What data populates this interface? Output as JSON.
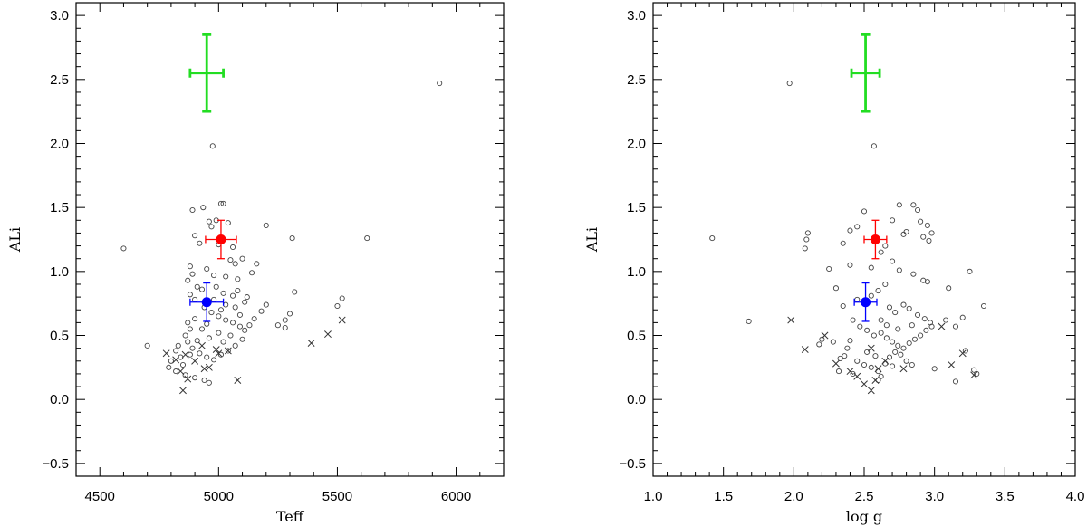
{
  "chart_data": [
    {
      "type": "scatter",
      "xlabel": "Teff",
      "ylabel": "ALi",
      "xlim": [
        4400,
        6200
      ],
      "ylim": [
        -0.6,
        3.1
      ],
      "xticks": [
        4500,
        5000,
        5500,
        6000
      ],
      "xtick_labels": [
        "4500",
        "5000",
        "5500",
        "6000"
      ],
      "yticks": [
        -0.5,
        0.0,
        0.5,
        1.0,
        1.5,
        2.0,
        2.5,
        3.0
      ],
      "ytick_labels": [
        "−0.5",
        "0.0",
        "0.5",
        "1.0",
        "1.5",
        "2.0",
        "2.5",
        "3.0"
      ],
      "grid": false,
      "series": [
        {
          "marker": "circle",
          "color": "#444444",
          "points": [
            [
              4600,
              1.18
            ],
            [
              4700,
              0.42
            ],
            [
              4975,
              1.98
            ],
            [
              5930,
              2.47
            ],
            [
              5200,
              1.36
            ],
            [
              5310,
              1.26
            ],
            [
              5625,
              1.26
            ],
            [
              5520,
              0.79
            ],
            [
              5500,
              0.73
            ],
            [
              5320,
              0.84
            ],
            [
              5300,
              0.67
            ],
            [
              5280,
              0.62
            ],
            [
              5250,
              0.58
            ],
            [
              5280,
              0.56
            ],
            [
              4890,
              1.48
            ],
            [
              4935,
              1.5
            ],
            [
              5010,
              1.53
            ],
            [
              5020,
              1.53
            ],
            [
              4960,
              1.39
            ],
            [
              4970,
              1.35
            ],
            [
              4990,
              1.4
            ],
            [
              5040,
              1.38
            ],
            [
              4900,
              1.28
            ],
            [
              4920,
              1.22
            ],
            [
              5000,
              1.21
            ],
            [
              5060,
              1.19
            ],
            [
              4880,
              1.04
            ],
            [
              4890,
              0.98
            ],
            [
              4870,
              0.93
            ],
            [
              4910,
              0.88
            ],
            [
              4930,
              0.86
            ],
            [
              5050,
              1.09
            ],
            [
              5100,
              1.1
            ],
            [
              5070,
              1.06
            ],
            [
              4950,
              1.02
            ],
            [
              4980,
              0.97
            ],
            [
              5030,
              0.96
            ],
            [
              5080,
              0.94
            ],
            [
              5140,
              0.99
            ],
            [
              5160,
              1.06
            ],
            [
              4880,
              0.82
            ],
            [
              4900,
              0.78
            ],
            [
              4940,
              0.72
            ],
            [
              4970,
              0.68
            ],
            [
              5000,
              0.65
            ],
            [
              5030,
              0.62
            ],
            [
              5060,
              0.6
            ],
            [
              5090,
              0.57
            ],
            [
              5110,
              0.54
            ],
            [
              5130,
              0.58
            ],
            [
              5150,
              0.63
            ],
            [
              5180,
              0.69
            ],
            [
              5200,
              0.74
            ],
            [
              5060,
              0.81
            ],
            [
              5080,
              0.85
            ],
            [
              5120,
              0.8
            ],
            [
              4990,
              0.88
            ],
            [
              4900,
              0.63
            ],
            [
              4880,
              0.55
            ],
            [
              4860,
              0.5
            ],
            [
              4870,
              0.45
            ],
            [
              4890,
              0.4
            ],
            [
              4920,
              0.36
            ],
            [
              4950,
              0.33
            ],
            [
              4980,
              0.31
            ],
            [
              5010,
              0.35
            ],
            [
              5040,
              0.38
            ],
            [
              5070,
              0.42
            ],
            [
              5100,
              0.47
            ],
            [
              5000,
              0.52
            ],
            [
              4960,
              0.48
            ],
            [
              4930,
              0.55
            ],
            [
              4830,
              0.42
            ],
            [
              4820,
              0.38
            ],
            [
              4800,
              0.3
            ],
            [
              4790,
              0.25
            ],
            [
              4820,
              0.22
            ],
            [
              4850,
              0.27
            ],
            [
              4860,
              0.19
            ],
            [
              4900,
              0.17
            ],
            [
              4940,
              0.15
            ],
            [
              4960,
              0.13
            ],
            [
              4870,
              0.6
            ],
            [
              5020,
              0.45
            ],
            [
              5050,
              0.5
            ],
            [
              5010,
              0.7
            ],
            [
              5030,
              0.74
            ],
            [
              5070,
              0.72
            ],
            [
              4950,
              0.59
            ],
            [
              4910,
              0.46
            ],
            [
              4840,
              0.33
            ],
            [
              4880,
              0.35
            ],
            [
              5090,
              0.66
            ],
            [
              5020,
              0.83
            ],
            [
              5110,
              0.76
            ],
            [
              4980,
              0.78
            ]
          ]
        },
        {
          "marker": "cross",
          "color": "#333333",
          "points": [
            [
              4780,
              0.36
            ],
            [
              4820,
              0.31
            ],
            [
              4860,
              0.35
            ],
            [
              4900,
              0.3
            ],
            [
              4840,
              0.22
            ],
            [
              4870,
              0.16
            ],
            [
              4850,
              0.07
            ],
            [
              4940,
              0.24
            ],
            [
              4960,
              0.25
            ],
            [
              5000,
              0.36
            ],
            [
              5040,
              0.38
            ],
            [
              5080,
              0.15
            ],
            [
              5390,
              0.44
            ],
            [
              5460,
              0.51
            ],
            [
              5520,
              0.62
            ],
            [
              4930,
              0.42
            ],
            [
              4990,
              0.39
            ]
          ]
        },
        {
          "marker": "errorbar",
          "color": "#ff0000",
          "points": [
            [
              5010,
              1.25
            ]
          ],
          "xerr": 65,
          "yerr": 0.15
        },
        {
          "marker": "errorbar",
          "color": "#0000ff",
          "points": [
            [
              4950,
              0.76
            ]
          ],
          "xerr": 70,
          "yerr": 0.15
        },
        {
          "marker": "errorbar-only",
          "color": "#22dd22",
          "points": [
            [
              4950,
              2.55
            ]
          ],
          "xerr": 70,
          "yerr": 0.3
        }
      ]
    },
    {
      "type": "scatter",
      "xlabel": "log g",
      "ylabel": "ALi",
      "xlim": [
        1.0,
        4.0
      ],
      "ylim": [
        -0.6,
        3.1
      ],
      "xticks": [
        1.0,
        1.5,
        2.0,
        2.5,
        3.0,
        3.5,
        4.0
      ],
      "xtick_labels": [
        "1.0",
        "1.5",
        "2.0",
        "2.5",
        "3.0",
        "3.5",
        "4.0"
      ],
      "yticks": [
        -0.5,
        0.0,
        0.5,
        1.0,
        1.5,
        2.0,
        2.5,
        3.0
      ],
      "ytick_labels": [
        "−0.5",
        "0.0",
        "0.5",
        "1.0",
        "1.5",
        "2.0",
        "2.5",
        "3.0"
      ],
      "grid": false,
      "series": [
        {
          "marker": "circle",
          "color": "#444444",
          "points": [
            [
              1.42,
              1.26
            ],
            [
              1.68,
              0.61
            ],
            [
              1.97,
              2.47
            ],
            [
              2.57,
              1.98
            ],
            [
              2.1,
              1.3
            ],
            [
              2.09,
              1.25
            ],
            [
              2.08,
              1.18
            ],
            [
              2.25,
              1.02
            ],
            [
              2.35,
              1.22
            ],
            [
              2.4,
              1.32
            ],
            [
              2.45,
              1.35
            ],
            [
              2.5,
              1.47
            ],
            [
              2.7,
              1.4
            ],
            [
              2.75,
              1.52
            ],
            [
              2.85,
              1.52
            ],
            [
              2.88,
              1.48
            ],
            [
              2.9,
              1.39
            ],
            [
              2.95,
              1.36
            ],
            [
              2.8,
              1.31
            ],
            [
              2.78,
              1.29
            ],
            [
              2.65,
              1.2
            ],
            [
              2.62,
              1.15
            ],
            [
              2.92,
              1.27
            ],
            [
              2.96,
              1.24
            ],
            [
              2.98,
              1.3
            ],
            [
              2.4,
              1.05
            ],
            [
              2.55,
              1.03
            ],
            [
              2.7,
              1.08
            ],
            [
              2.75,
              1.01
            ],
            [
              2.85,
              0.98
            ],
            [
              2.92,
              0.93
            ],
            [
              2.95,
              0.92
            ],
            [
              3.25,
              1.0
            ],
            [
              3.1,
              0.87
            ],
            [
              3.35,
              0.73
            ],
            [
              3.2,
              0.64
            ],
            [
              3.15,
              0.57
            ],
            [
              3.08,
              0.62
            ],
            [
              2.3,
              0.87
            ],
            [
              2.35,
              0.73
            ],
            [
              2.45,
              0.78
            ],
            [
              2.55,
              0.81
            ],
            [
              2.6,
              0.85
            ],
            [
              2.65,
              0.9
            ],
            [
              2.68,
              0.72
            ],
            [
              2.72,
              0.68
            ],
            [
              2.78,
              0.74
            ],
            [
              2.82,
              0.71
            ],
            [
              2.88,
              0.66
            ],
            [
              2.93,
              0.63
            ],
            [
              2.97,
              0.6
            ],
            [
              2.42,
              0.62
            ],
            [
              2.47,
              0.57
            ],
            [
              2.52,
              0.54
            ],
            [
              2.57,
              0.5
            ],
            [
              2.62,
              0.52
            ],
            [
              2.66,
              0.48
            ],
            [
              2.7,
              0.45
            ],
            [
              2.74,
              0.42
            ],
            [
              2.78,
              0.4
            ],
            [
              2.82,
              0.44
            ],
            [
              2.86,
              0.47
            ],
            [
              2.9,
              0.5
            ],
            [
              2.94,
              0.54
            ],
            [
              2.98,
              0.57
            ],
            [
              2.4,
              0.46
            ],
            [
              2.38,
              0.4
            ],
            [
              2.36,
              0.34
            ],
            [
              2.45,
              0.3
            ],
            [
              2.5,
              0.27
            ],
            [
              2.55,
              0.25
            ],
            [
              2.6,
              0.22
            ],
            [
              2.65,
              0.28
            ],
            [
              2.68,
              0.33
            ],
            [
              2.72,
              0.37
            ],
            [
              2.76,
              0.35
            ],
            [
              2.8,
              0.3
            ],
            [
              2.84,
              0.27
            ],
            [
              2.2,
              0.47
            ],
            [
              2.18,
              0.43
            ],
            [
              2.28,
              0.45
            ],
            [
              2.33,
              0.32
            ],
            [
              2.32,
              0.22
            ],
            [
              2.42,
              0.2
            ],
            [
              2.6,
              0.15
            ],
            [
              2.62,
              0.18
            ],
            [
              2.7,
              0.26
            ],
            [
              3.0,
              0.24
            ],
            [
              3.15,
              0.14
            ],
            [
              3.22,
              0.38
            ],
            [
              3.28,
              0.23
            ],
            [
              3.3,
              0.2
            ],
            [
              2.52,
              0.37
            ],
            [
              2.58,
              0.34
            ],
            [
              2.62,
              0.62
            ],
            [
              2.66,
              0.58
            ],
            [
              2.74,
              0.55
            ],
            [
              2.84,
              0.58
            ]
          ]
        },
        {
          "marker": "cross",
          "color": "#333333",
          "points": [
            [
              1.98,
              0.62
            ],
            [
              2.08,
              0.39
            ],
            [
              2.22,
              0.5
            ],
            [
              2.3,
              0.28
            ],
            [
              2.4,
              0.22
            ],
            [
              2.45,
              0.18
            ],
            [
              2.5,
              0.12
            ],
            [
              2.55,
              0.07
            ],
            [
              2.58,
              0.15
            ],
            [
              2.6,
              0.24
            ],
            [
              2.65,
              0.3
            ],
            [
              2.78,
              0.24
            ],
            [
              3.05,
              0.57
            ],
            [
              3.12,
              0.27
            ],
            [
              3.2,
              0.36
            ],
            [
              3.28,
              0.19
            ],
            [
              2.55,
              0.4
            ]
          ]
        },
        {
          "marker": "errorbar",
          "color": "#ff0000",
          "points": [
            [
              2.58,
              1.25
            ]
          ],
          "xerr": 0.08,
          "yerr": 0.15
        },
        {
          "marker": "errorbar",
          "color": "#0000ff",
          "points": [
            [
              2.51,
              0.76
            ]
          ],
          "xerr": 0.08,
          "yerr": 0.15
        },
        {
          "marker": "errorbar-only",
          "color": "#22dd22",
          "points": [
            [
              2.51,
              2.55
            ]
          ],
          "xerr": 0.1,
          "yerr": 0.3
        }
      ]
    }
  ]
}
